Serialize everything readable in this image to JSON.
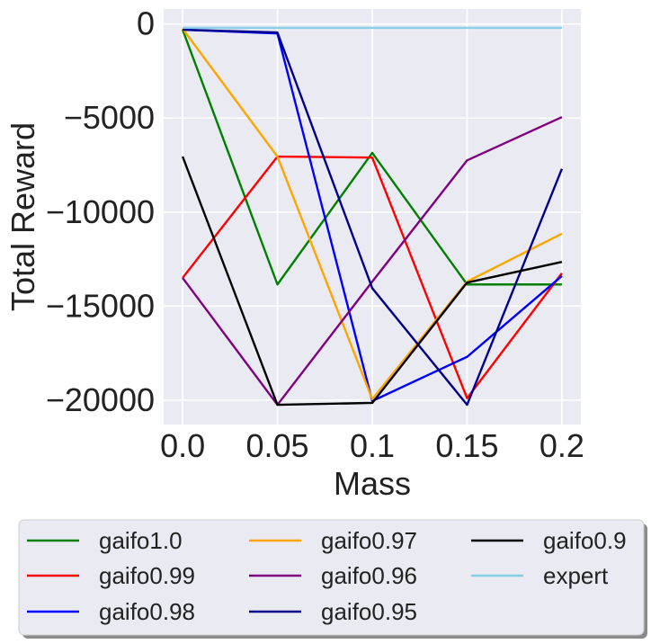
{
  "chart_data": {
    "type": "line",
    "x": [
      0.0,
      0.05,
      0.1,
      0.15,
      0.2
    ],
    "x_tick_labels": [
      "0.0",
      "0.05",
      "0.1",
      "0.15",
      "0.2"
    ],
    "xlabel": "Mass",
    "ylabel": "Total Reward",
    "y_ticks": [
      0,
      -5000,
      -10000,
      -15000,
      -20000
    ],
    "y_tick_labels": [
      "0",
      "−5000",
      "−10000",
      "−15000",
      "−20000"
    ],
    "xlim": [
      -0.01,
      0.21
    ],
    "ylim": [
      -21300,
      800
    ],
    "grid": true,
    "legend_position": "below",
    "series": [
      {
        "name": "gaifo1.0",
        "color": "#008000",
        "values": [
          -300,
          -13850,
          -6850,
          -13850,
          -13850
        ]
      },
      {
        "name": "gaifo0.99",
        "color": "#ff0000",
        "values": [
          -13500,
          -7050,
          -7100,
          -19900,
          -13250
        ]
      },
      {
        "name": "gaifo0.98",
        "color": "#0000ff",
        "values": [
          -300,
          -500,
          -20050,
          -17700,
          -13400
        ]
      },
      {
        "name": "gaifo0.97",
        "color": "#ffa500",
        "values": [
          -250,
          -7050,
          -19950,
          -13700,
          -11150
        ]
      },
      {
        "name": "gaifo0.96",
        "color": "#800080",
        "values": [
          -13500,
          -20250,
          -13700,
          -7250,
          -4950
        ]
      },
      {
        "name": "gaifo0.95",
        "color": "#00008b",
        "values": [
          -300,
          -450,
          -14050,
          -20250,
          -7700
        ]
      },
      {
        "name": "gaifo0.9",
        "color": "#000000",
        "values": [
          -7050,
          -20250,
          -20150,
          -13750,
          -12650
        ]
      },
      {
        "name": "expert",
        "color": "#87ceeb",
        "values": [
          -200,
          -200,
          -200,
          -200,
          -200
        ]
      }
    ]
  }
}
